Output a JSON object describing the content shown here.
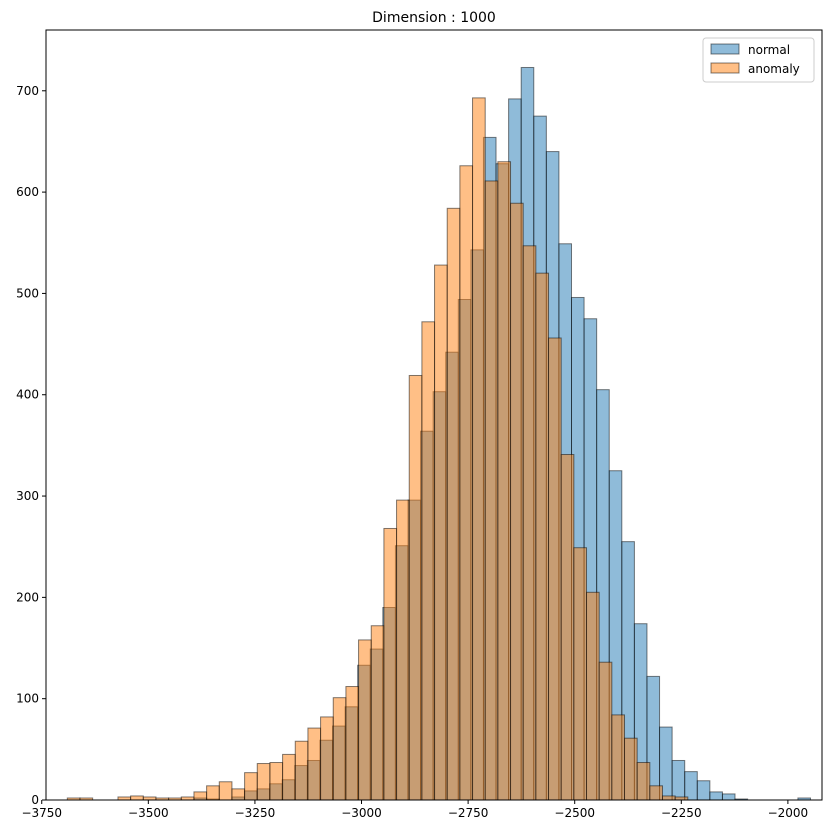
{
  "chart_data": {
    "type": "histogram",
    "title": "Dimension : 1000",
    "xlabel": "",
    "ylabel": "",
    "xlim": [
      -3740,
      -1920
    ],
    "ylim": [
      0,
      760
    ],
    "x_ticks": [
      -3750,
      -3500,
      -3250,
      -3000,
      -2750,
      -2500,
      -2250,
      -2000
    ],
    "x_tick_labels": [
      "−3750",
      "−3500",
      "−3250",
      "−3000",
      "−2750",
      "−2500",
      "−2250",
      "−2000"
    ],
    "y_ticks": [
      0,
      100,
      200,
      300,
      400,
      500,
      600,
      700
    ],
    "y_tick_labels": [
      "0",
      "100",
      "200",
      "300",
      "400",
      "500",
      "600",
      "700"
    ],
    "grid": false,
    "legend": {
      "placement": "top-right"
    },
    "series": [
      {
        "name": "normal",
        "color": "#1f77b4",
        "alpha": 0.5,
        "bin_width": 29.5,
        "bins_left": [
          -3392.5,
          -3363.0,
          -3333.5,
          -3304.0,
          -3274.5,
          -3245.0,
          -3215.5,
          -3186.0,
          -3156.5,
          -3127.0,
          -3097.5,
          -3068.0,
          -3038.5,
          -3009.0,
          -2979.5,
          -2950.0,
          -2920.5,
          -2891.0,
          -2861.5,
          -2832.0,
          -2802.5,
          -2773.0,
          -2743.5,
          -2714.0,
          -2684.5,
          -2655.0,
          -2625.5,
          -2596.0,
          -2566.5,
          -2537.0,
          -2507.5,
          -2478.0,
          -2448.5,
          -2419.0,
          -2389.5,
          -2360.0,
          -2330.5,
          -2301.0,
          -2271.5,
          -2242.0,
          -2212.5,
          -2183.0,
          -2153.5,
          -2124.0,
          -2094.5,
          -2065.0,
          -2035.5,
          -2006.0,
          -1976.5
        ],
        "values": [
          2,
          1,
          0,
          3,
          9,
          11,
          16,
          20,
          34,
          39,
          59,
          73,
          92,
          133,
          149,
          190,
          251,
          296,
          364,
          403,
          442,
          494,
          543,
          654,
          628,
          692,
          723,
          675,
          640,
          549,
          496,
          475,
          405,
          325,
          255,
          174,
          122,
          72,
          39,
          28,
          19,
          8,
          6,
          1,
          0,
          0,
          0,
          0,
          2
        ]
      },
      {
        "name": "anomaly",
        "color": "#ff7f0e",
        "alpha": 0.5,
        "bin_width": 29.7,
        "bins_left": [
          -3690.0,
          -3660.3,
          -3630.6,
          -3600.9,
          -3571.2,
          -3541.5,
          -3511.8,
          -3482.1,
          -3452.4,
          -3422.7,
          -3393.0,
          -3363.3,
          -3333.6,
          -3303.9,
          -3274.2,
          -3244.5,
          -3214.8,
          -3185.1,
          -3155.4,
          -3125.7,
          -3096.0,
          -3066.3,
          -3036.6,
          -3006.9,
          -2977.2,
          -2947.5,
          -2917.8,
          -2888.1,
          -2858.4,
          -2828.7,
          -2799.0,
          -2769.3,
          -2739.6,
          -2709.9,
          -2680.2,
          -2650.5,
          -2620.8,
          -2591.1,
          -2561.4,
          -2531.7,
          -2502.0,
          -2472.3,
          -2442.6,
          -2412.9,
          -2383.2,
          -2353.5,
          -2323.8,
          -2294.1,
          -2264.4,
          -2234.7,
          -2205.0,
          -2175.3,
          -2145.3
        ],
        "values": [
          2,
          2,
          0,
          0,
          3,
          4,
          3,
          2,
          2,
          3,
          8,
          14,
          18,
          11,
          27,
          36,
          37,
          45,
          58,
          71,
          82,
          101,
          112,
          158,
          172,
          268,
          296,
          419,
          472,
          528,
          584,
          626,
          693,
          611,
          630,
          589,
          547,
          520,
          456,
          341,
          249,
          205,
          136,
          84,
          61,
          37,
          14,
          4,
          3,
          0,
          0,
          0,
          0
        ]
      }
    ]
  }
}
